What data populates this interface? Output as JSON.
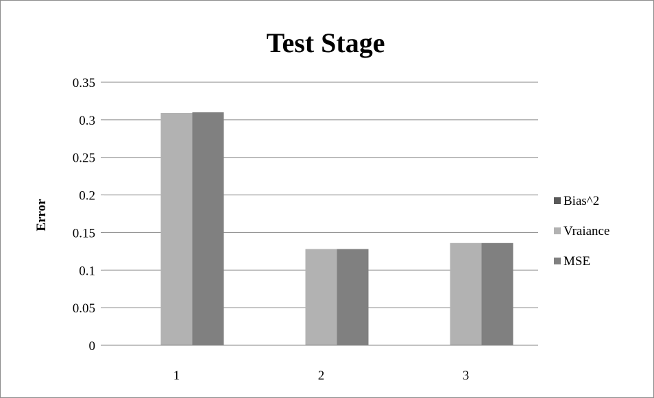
{
  "chart_data": {
    "type": "bar",
    "title": "Test Stage",
    "xlabel": "",
    "ylabel": "Error",
    "categories": [
      "1",
      "2",
      "3"
    ],
    "ylim": [
      0,
      0.35
    ],
    "yticks": [
      "0",
      "0.05",
      "0.1",
      "0.15",
      "0.2",
      "0.25",
      "0.3",
      "0.35"
    ],
    "grid": true,
    "legend_position": "right",
    "series": [
      {
        "name": "Bias^2",
        "values": [
          0,
          0,
          0
        ],
        "color": "#595959"
      },
      {
        "name": "Vraiance",
        "values": [
          0.309,
          0.128,
          0.136
        ],
        "color": "#b2b2b2"
      },
      {
        "name": "MSE",
        "values": [
          0.31,
          0.128,
          0.136
        ],
        "color": "#808080"
      }
    ]
  }
}
